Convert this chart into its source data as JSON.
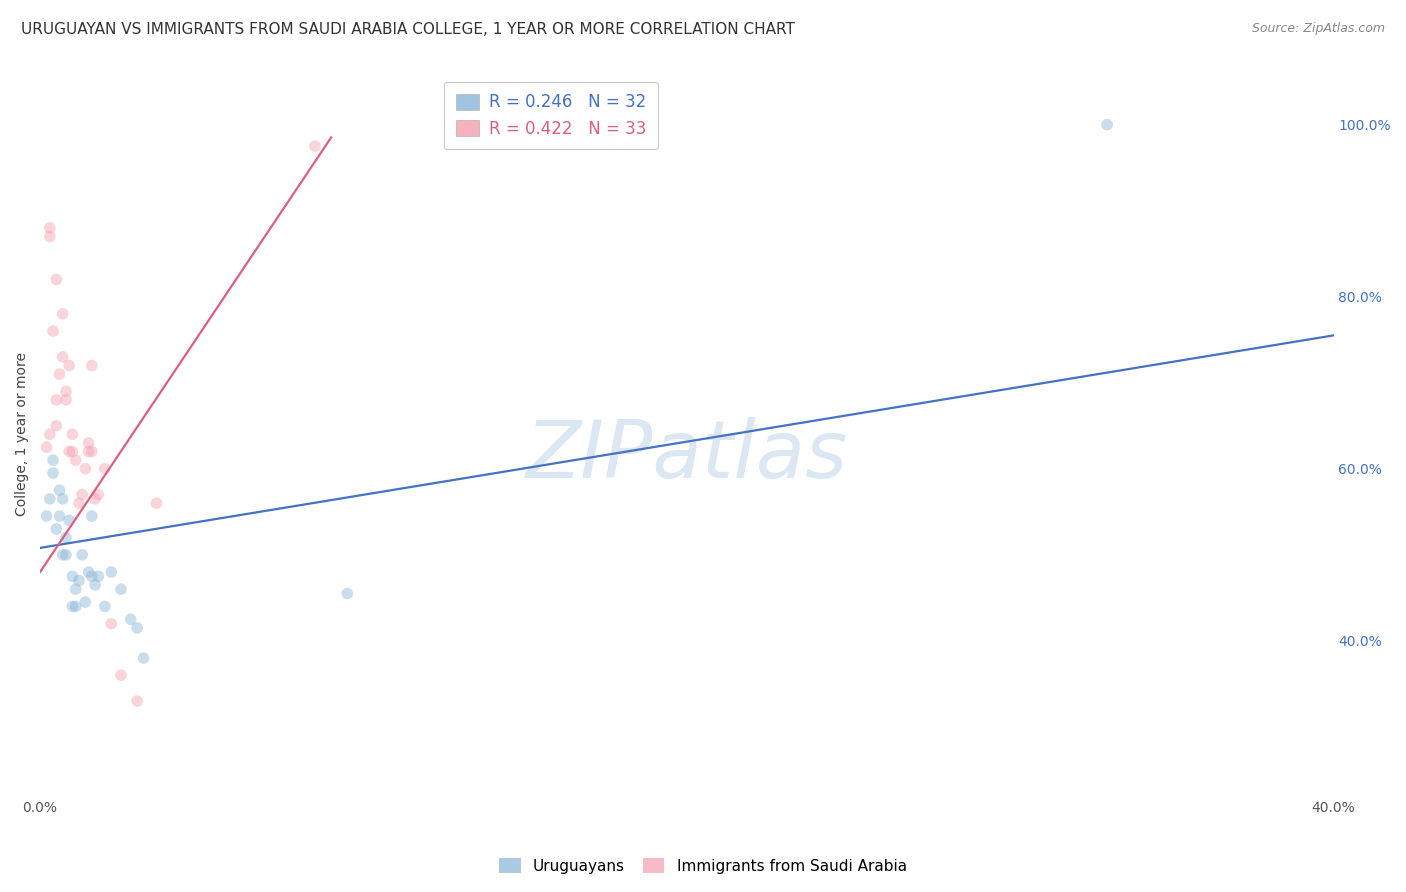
{
  "title": "URUGUAYAN VS IMMIGRANTS FROM SAUDI ARABIA COLLEGE, 1 YEAR OR MORE CORRELATION CHART",
  "source": "Source: ZipAtlas.com",
  "ylabel": "College, 1 year or more",
  "xmin": 0.0,
  "xmax": 0.4,
  "ymin": 0.22,
  "ymax": 1.06,
  "xtick_positions": [
    0.0,
    0.05,
    0.1,
    0.15,
    0.2,
    0.25,
    0.3,
    0.35,
    0.4
  ],
  "xtick_labels": [
    "0.0%",
    "",
    "",
    "",
    "",
    "",
    "",
    "",
    "40.0%"
  ],
  "ytick_vals_right": [
    0.4,
    0.6,
    0.8,
    1.0
  ],
  "ytick_labels_right": [
    "40.0%",
    "60.0%",
    "80.0%",
    "100.0%"
  ],
  "blue_scatter_x": [
    0.002,
    0.003,
    0.004,
    0.004,
    0.005,
    0.006,
    0.006,
    0.007,
    0.007,
    0.008,
    0.008,
    0.009,
    0.01,
    0.01,
    0.011,
    0.011,
    0.012,
    0.013,
    0.014,
    0.015,
    0.016,
    0.016,
    0.017,
    0.018,
    0.02,
    0.022,
    0.025,
    0.028,
    0.03,
    0.032,
    0.095,
    0.33
  ],
  "blue_scatter_y": [
    0.545,
    0.565,
    0.595,
    0.61,
    0.53,
    0.545,
    0.575,
    0.565,
    0.5,
    0.5,
    0.52,
    0.54,
    0.475,
    0.44,
    0.46,
    0.44,
    0.47,
    0.5,
    0.445,
    0.48,
    0.545,
    0.475,
    0.465,
    0.475,
    0.44,
    0.48,
    0.46,
    0.425,
    0.415,
    0.38,
    0.455,
    1.0
  ],
  "pink_scatter_x": [
    0.002,
    0.003,
    0.003,
    0.003,
    0.004,
    0.005,
    0.005,
    0.005,
    0.006,
    0.007,
    0.007,
    0.008,
    0.008,
    0.009,
    0.009,
    0.01,
    0.01,
    0.011,
    0.012,
    0.013,
    0.014,
    0.015,
    0.015,
    0.016,
    0.016,
    0.017,
    0.018,
    0.02,
    0.022,
    0.025,
    0.03,
    0.036,
    0.085
  ],
  "pink_scatter_y": [
    0.625,
    0.64,
    0.87,
    0.88,
    0.76,
    0.82,
    0.65,
    0.68,
    0.71,
    0.73,
    0.78,
    0.68,
    0.69,
    0.72,
    0.62,
    0.62,
    0.64,
    0.61,
    0.56,
    0.57,
    0.6,
    0.63,
    0.62,
    0.62,
    0.72,
    0.565,
    0.57,
    0.6,
    0.42,
    0.36,
    0.33,
    0.56,
    0.975
  ],
  "blue_line_x": [
    0.0,
    0.4
  ],
  "blue_line_y": [
    0.508,
    0.755
  ],
  "pink_line_x": [
    0.0,
    0.09
  ],
  "pink_line_y": [
    0.48,
    0.985
  ],
  "blue_scatter_color": "#8ab4d8",
  "pink_scatter_color": "#f4a0b0",
  "blue_line_color": "#4472c4",
  "pink_line_color": "#d96080",
  "watermark_text": "ZIPatlas",
  "watermark_color": "#c5d8ed",
  "watermark_alpha": 0.6,
  "legend_label_blue": "R = 0.246   N = 32",
  "legend_label_pink": "R = 0.422   N = 33",
  "legend_color_blue": "#4472c4",
  "legend_color_pink": "#d96080",
  "grid_color": "#cccccc",
  "grid_style": "--",
  "background_color": "#ffffff",
  "title_fontsize": 11,
  "source_fontsize": 9,
  "marker_size": 70,
  "marker_alpha": 0.45,
  "line_width": 1.6,
  "bottom_legend_labels": [
    "Uruguayans",
    "Immigrants from Saudi Arabia"
  ]
}
